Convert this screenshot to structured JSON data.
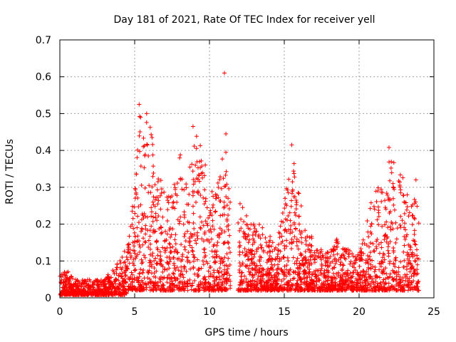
{
  "chart_data": {
    "type": "scatter",
    "title": "Day 181 of 2021, Rate Of TEC Index for receiver yell",
    "xlabel": "GPS time / hours",
    "ylabel": "ROTI / TECUs",
    "xlim": [
      0,
      25
    ],
    "ylim": [
      0,
      0.7
    ],
    "xticks": [
      "0",
      "5",
      "10",
      "15",
      "20",
      "25"
    ],
    "yticks": [
      "0",
      "0.1",
      "0.2",
      "0.3",
      "0.4",
      "0.5",
      "0.6",
      "0.7"
    ],
    "grid": true,
    "marker": "+",
    "color": "#ff0000",
    "series": [
      {
        "name": "ROTI",
        "profile_hours": [
          0,
          0.5,
          1,
          2,
          3,
          3.5,
          4,
          4.5,
          5,
          5.3,
          5.5,
          6,
          6.5,
          7,
          7.5,
          8,
          8.5,
          9,
          9.5,
          10,
          10.5,
          11,
          11.3,
          11.5,
          12,
          12.5,
          13,
          13.5,
          14,
          14.5,
          15,
          15.5,
          16,
          16.5,
          17,
          17.5,
          18,
          18.5,
          19,
          19.5,
          20,
          20.5,
          21,
          21.5,
          22,
          22.5,
          23,
          23.5,
          24
        ],
        "profile_high": [
          0.06,
          0.08,
          0.05,
          0.05,
          0.05,
          0.08,
          0.1,
          0.15,
          0.3,
          0.52,
          0.45,
          0.5,
          0.35,
          0.3,
          0.28,
          0.4,
          0.3,
          0.46,
          0.4,
          0.35,
          0.3,
          0.42,
          0.35,
          0.3,
          0.3,
          0.22,
          0.2,
          0.2,
          0.18,
          0.15,
          0.26,
          0.41,
          0.28,
          0.18,
          0.16,
          0.14,
          0.12,
          0.16,
          0.14,
          0.13,
          0.12,
          0.2,
          0.3,
          0.3,
          0.4,
          0.35,
          0.35,
          0.25,
          0.3
        ],
        "gaps_hours": [
          [
            11.4,
            11.9
          ]
        ],
        "outliers": [
          {
            "x": 5.3,
            "y": 0.525
          },
          {
            "x": 5.4,
            "y": 0.49
          },
          {
            "x": 5.8,
            "y": 0.5
          },
          {
            "x": 8.9,
            "y": 0.465
          },
          {
            "x": 11.0,
            "y": 0.61
          },
          {
            "x": 11.1,
            "y": 0.445
          },
          {
            "x": 11.1,
            "y": 0.395
          },
          {
            "x": 15.5,
            "y": 0.415
          },
          {
            "x": 22.0,
            "y": 0.408
          },
          {
            "x": 23.8,
            "y": 0.32
          }
        ]
      }
    ]
  }
}
